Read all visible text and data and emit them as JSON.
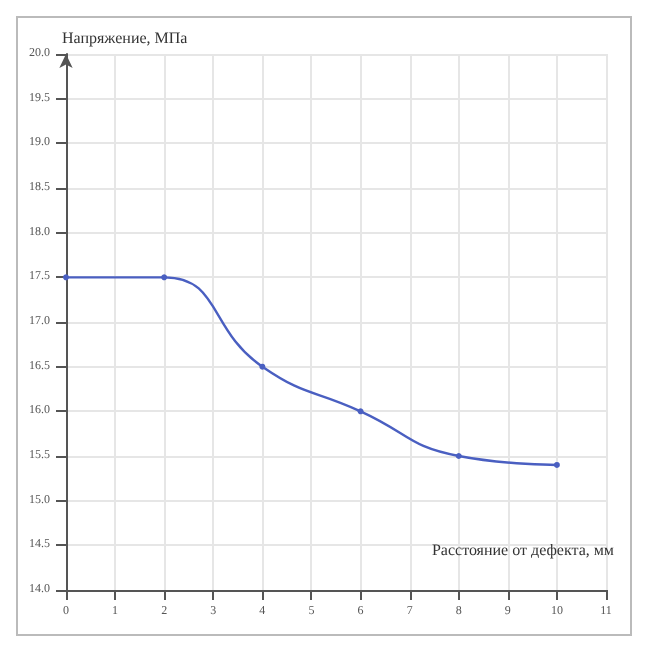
{
  "chart_data": {
    "type": "line",
    "xlabel": "Расстояние от дефекта, мм",
    "ylabel": "Напряжение, МПа",
    "x": [
      0,
      2,
      4,
      6,
      8,
      10
    ],
    "series": [
      {
        "color": "#4a5fc1",
        "values": [
          17.5,
          17.5,
          16.5,
          16.0,
          15.5,
          15.4
        ]
      }
    ],
    "xlim": [
      0,
      11
    ],
    "xticks": [
      0,
      1,
      2,
      3,
      4,
      5,
      6,
      7,
      8,
      9,
      10,
      11
    ],
    "ylim": [
      14,
      20
    ],
    "yticks": [
      {
        "value": 14,
        "label": "14.0"
      },
      {
        "value": 14.5,
        "label": "14.5"
      },
      {
        "value": 15,
        "label": "15.0"
      },
      {
        "value": 15.5,
        "label": "15.5"
      },
      {
        "value": 16,
        "label": "16.0"
      },
      {
        "value": 16.5,
        "label": "16.5"
      },
      {
        "value": 17,
        "label": "17.0"
      },
      {
        "value": 17.5,
        "label": "17.5"
      },
      {
        "value": 18,
        "label": "18.0"
      },
      {
        "value": 18.5,
        "label": "18.5"
      },
      {
        "value": 19,
        "label": "19.0"
      },
      {
        "value": 19.5,
        "label": "19.5"
      },
      {
        "value": 20,
        "label": "20.0"
      }
    ],
    "grid": true,
    "marker": "circle",
    "line_style": "solid"
  }
}
